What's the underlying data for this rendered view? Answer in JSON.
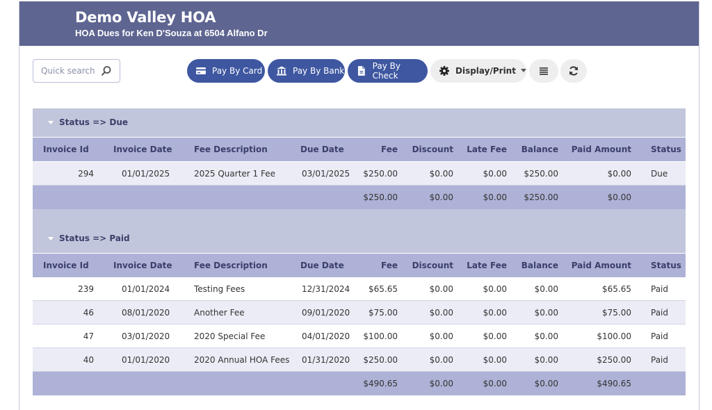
{
  "header": {
    "title": "Demo Valley HOA",
    "subtitle": "HOA Dues for Ken D'Souza at 6504 Alfano Dr"
  },
  "search": {
    "placeholder": "Quick search"
  },
  "toolbar": {
    "pay_card": "Pay By Card",
    "pay_bank": "Pay By Bank",
    "pay_check": "Pay By Check",
    "display_print": "Display/Print"
  },
  "colors": {
    "header": "#5e6591",
    "primary_button": "#3e57a0",
    "group_header": "#c2c6dc",
    "column_header": "#aeb2d6"
  },
  "columns": [
    "Invoice Id",
    "Invoice Date",
    "Fee Description",
    "Due Date",
    "Fee",
    "Discount",
    "Late Fee",
    "Balance",
    "Paid Amount",
    "Status"
  ],
  "groups": [
    {
      "label": "Status => Due",
      "rows": [
        [
          "294",
          "01/01/2025",
          "2025 Quarter 1 Fee",
          "03/01/2025",
          "$250.00",
          "$0.00",
          "$0.00",
          "$250.00",
          "$0.00",
          "Due"
        ]
      ],
      "totals": [
        "",
        "",
        "",
        "",
        "$250.00",
        "$0.00",
        "$0.00",
        "$250.00",
        "$0.00",
        ""
      ]
    },
    {
      "label": "Status => Paid",
      "rows": [
        [
          "239",
          "01/01/2024",
          "Testing Fees",
          "12/31/2024",
          "$65.65",
          "$0.00",
          "$0.00",
          "$0.00",
          "$65.65",
          "Paid"
        ],
        [
          "46",
          "08/01/2020",
          "Another Fee",
          "09/01/2020",
          "$75.00",
          "$0.00",
          "$0.00",
          "$0.00",
          "$75.00",
          "Paid"
        ],
        [
          "47",
          "03/01/2020",
          "2020 Special Fee",
          "04/01/2020",
          "$100.00",
          "$0.00",
          "$0.00",
          "$0.00",
          "$100.00",
          "Paid"
        ],
        [
          "40",
          "01/01/2020",
          "2020 Annual HOA Fees",
          "01/31/2020",
          "$250.00",
          "$0.00",
          "$0.00",
          "$0.00",
          "$250.00",
          "Paid"
        ]
      ],
      "totals": [
        "",
        "",
        "",
        "",
        "$490.65",
        "$0.00",
        "$0.00",
        "$0.00",
        "$490.65",
        ""
      ]
    }
  ]
}
